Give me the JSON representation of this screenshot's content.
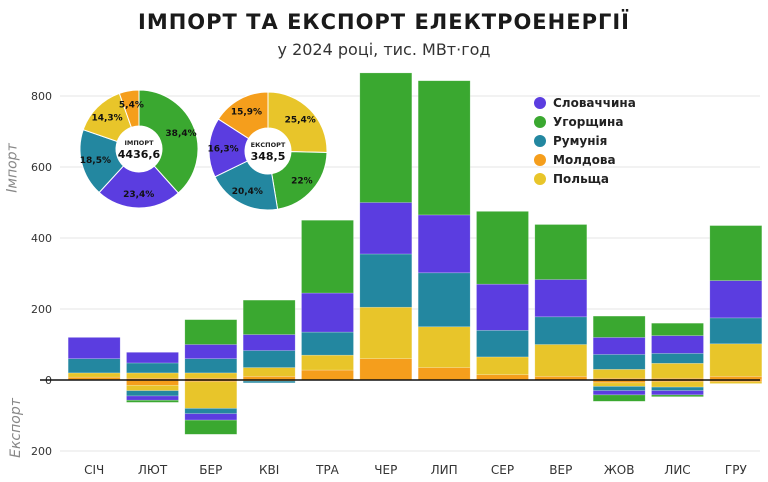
{
  "title": "ІМПОРТ ТА ЕКСПОРТ ЕЛЕКТРОЕНЕРГІЇ",
  "subtitle": "у 2024 році, тис. МВт·год",
  "y_label_import": "Імпорт",
  "y_label_export": "Експорт",
  "colors": {
    "Словаччина": "#5b3de0",
    "Угорщина": "#3aa830",
    "Румунія": "#2387a0",
    "Молдова": "#f59e1c",
    "Польща": "#e8c52a"
  },
  "chart_data": {
    "type": "bar",
    "stacked": true,
    "categories": [
      "СІЧ",
      "ЛЮТ",
      "БЕР",
      "КВІ",
      "ТРА",
      "ЧЕР",
      "ЛИП",
      "СЕР",
      "ВЕР",
      "ЖОВ",
      "ЛИС",
      "ГРУ"
    ],
    "y_ticks": [
      {
        "value": 800,
        "label": "800"
      },
      {
        "value": 600,
        "label": "600"
      },
      {
        "value": 400,
        "label": "400"
      },
      {
        "value": 200,
        "label": "200"
      },
      {
        "value": 0,
        "label": "0"
      },
      {
        "value": -200,
        "label": "200"
      }
    ],
    "ylim": [
      -200,
      860
    ],
    "series_order": [
      "Молдова",
      "Польща",
      "Румунія",
      "Словаччина",
      "Угорщина"
    ],
    "import": {
      "Молдова": [
        8,
        5,
        5,
        10,
        28,
        60,
        35,
        15,
        10,
        5,
        5,
        10
      ],
      "Польща": [
        12,
        15,
        15,
        25,
        42,
        145,
        115,
        50,
        90,
        25,
        42,
        92
      ],
      "Румунія": [
        40,
        28,
        40,
        48,
        65,
        150,
        152,
        75,
        78,
        42,
        28,
        73
      ],
      "Словаччина": [
        60,
        30,
        40,
        45,
        110,
        145,
        163,
        130,
        105,
        48,
        50,
        105
      ],
      "Угорщина": [
        0,
        0,
        70,
        97,
        205,
        365,
        378,
        205,
        155,
        60,
        35,
        155
      ]
    },
    "export": {
      "Молдова": [
        0,
        15,
        5,
        3,
        0,
        0,
        0,
        0,
        0,
        8,
        5,
        5
      ],
      "Польща": [
        0,
        15,
        75,
        0,
        0,
        0,
        0,
        0,
        0,
        10,
        15,
        5
      ],
      "Румунія": [
        0,
        15,
        15,
        5,
        0,
        0,
        0,
        0,
        0,
        12,
        10,
        0
      ],
      "Словаччина": [
        0,
        12,
        18,
        0,
        0,
        0,
        0,
        0,
        0,
        12,
        12,
        0
      ],
      "Угорщина": [
        0,
        6,
        40,
        0,
        0,
        0,
        0,
        0,
        0,
        18,
        5,
        0
      ]
    },
    "legend": [
      "Словаччина",
      "Угорщина",
      "Румунія",
      "Молдова",
      "Польща"
    ],
    "legend_position": "top-right",
    "pies": [
      {
        "name": "ІМПОРТ",
        "total": "4436,6",
        "slices": [
          {
            "series": "Угорщина",
            "value": 38.4,
            "label": "38,4%"
          },
          {
            "series": "Словаччина",
            "value": 23.4,
            "label": "23,4%"
          },
          {
            "series": "Румунія",
            "value": 18.5,
            "label": "18,5%"
          },
          {
            "series": "Польща",
            "value": 14.3,
            "label": "14,3%"
          },
          {
            "series": "Молдова",
            "value": 5.4,
            "label": "5,4%"
          }
        ]
      },
      {
        "name": "ЕКСПОРТ",
        "total": "348,5",
        "slices": [
          {
            "series": "Польща",
            "value": 25.4,
            "label": "25,4%"
          },
          {
            "series": "Угорщина",
            "value": 22.0,
            "label": "22%"
          },
          {
            "series": "Румунія",
            "value": 20.4,
            "label": "20,4%"
          },
          {
            "series": "Словаччина",
            "value": 16.3,
            "label": "16,3%"
          },
          {
            "series": "Молдова",
            "value": 15.9,
            "label": "15,9%"
          }
        ]
      }
    ]
  }
}
